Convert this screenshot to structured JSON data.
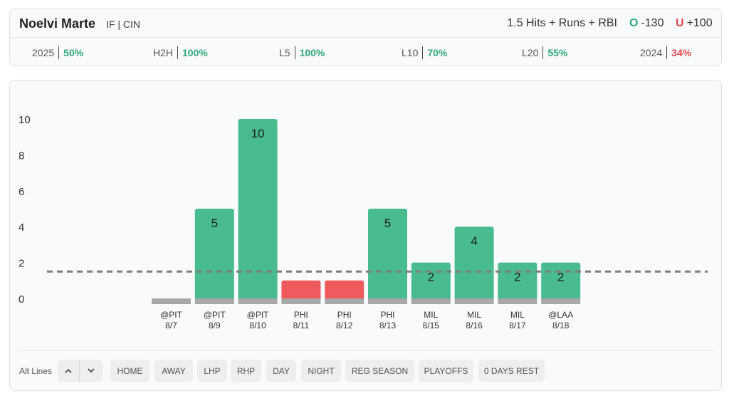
{
  "player": {
    "name": "Noelvi Marte",
    "meta": "IF | CIN"
  },
  "prop": {
    "line": "1.5 Hits + Runs + RBI",
    "over_letter": "O",
    "over_odds": "-130",
    "under_letter": "U",
    "under_odds": "+100"
  },
  "colors": {
    "green": "#2fa978",
    "red": "#e5484d",
    "bar_green": "#48bb8f",
    "bar_red": "#ef5a5d",
    "base_gray": "#a8a8a8"
  },
  "stats": [
    {
      "label": "2025",
      "value": "50%",
      "status": "green"
    },
    {
      "label": "H2H",
      "value": "100%",
      "status": "green"
    },
    {
      "label": "L5",
      "value": "100%",
      "status": "green"
    },
    {
      "label": "L10",
      "value": "70%",
      "status": "green"
    },
    {
      "label": "L20",
      "value": "55%",
      "status": "green"
    },
    {
      "label": "2024",
      "value": "34%",
      "status": "red"
    }
  ],
  "chart_data": {
    "type": "bar",
    "ylim": [
      0,
      10
    ],
    "yticks": [
      "0",
      "2",
      "4",
      "6",
      "8",
      "10"
    ],
    "line_value": 1.5,
    "games": [
      {
        "opp": "@PIT",
        "date": "8/7",
        "value": 0,
        "label": "",
        "result": "under"
      },
      {
        "opp": "@PIT",
        "date": "8/9",
        "value": 5,
        "label": "5",
        "result": "over"
      },
      {
        "opp": "@PIT",
        "date": "8/10",
        "value": 10,
        "label": "10",
        "result": "over"
      },
      {
        "opp": "PHI",
        "date": "8/11",
        "value": 1,
        "label": "",
        "result": "under"
      },
      {
        "opp": "PHI",
        "date": "8/12",
        "value": 1,
        "label": "",
        "result": "under"
      },
      {
        "opp": "PHI",
        "date": "8/13",
        "value": 5,
        "label": "5",
        "result": "over"
      },
      {
        "opp": "MIL",
        "date": "8/15",
        "value": 2,
        "label": "2",
        "result": "over"
      },
      {
        "opp": "MIL",
        "date": "8/16",
        "value": 4,
        "label": "4",
        "result": "over"
      },
      {
        "opp": "MIL",
        "date": "8/17",
        "value": 2,
        "label": "2",
        "result": "over"
      },
      {
        "opp": "@LAA",
        "date": "8/18",
        "value": 2,
        "label": "2",
        "result": "over"
      }
    ]
  },
  "filters": {
    "alt_lines_label": "Alt Lines",
    "up_icon": "chevron-up-icon",
    "down_icon": "chevron-down-icon",
    "buttons": [
      "HOME",
      "AWAY",
      "LHP",
      "RHP",
      "DAY",
      "NIGHT",
      "REG SEASON",
      "PLAYOFFS",
      "0 DAYS REST"
    ]
  }
}
